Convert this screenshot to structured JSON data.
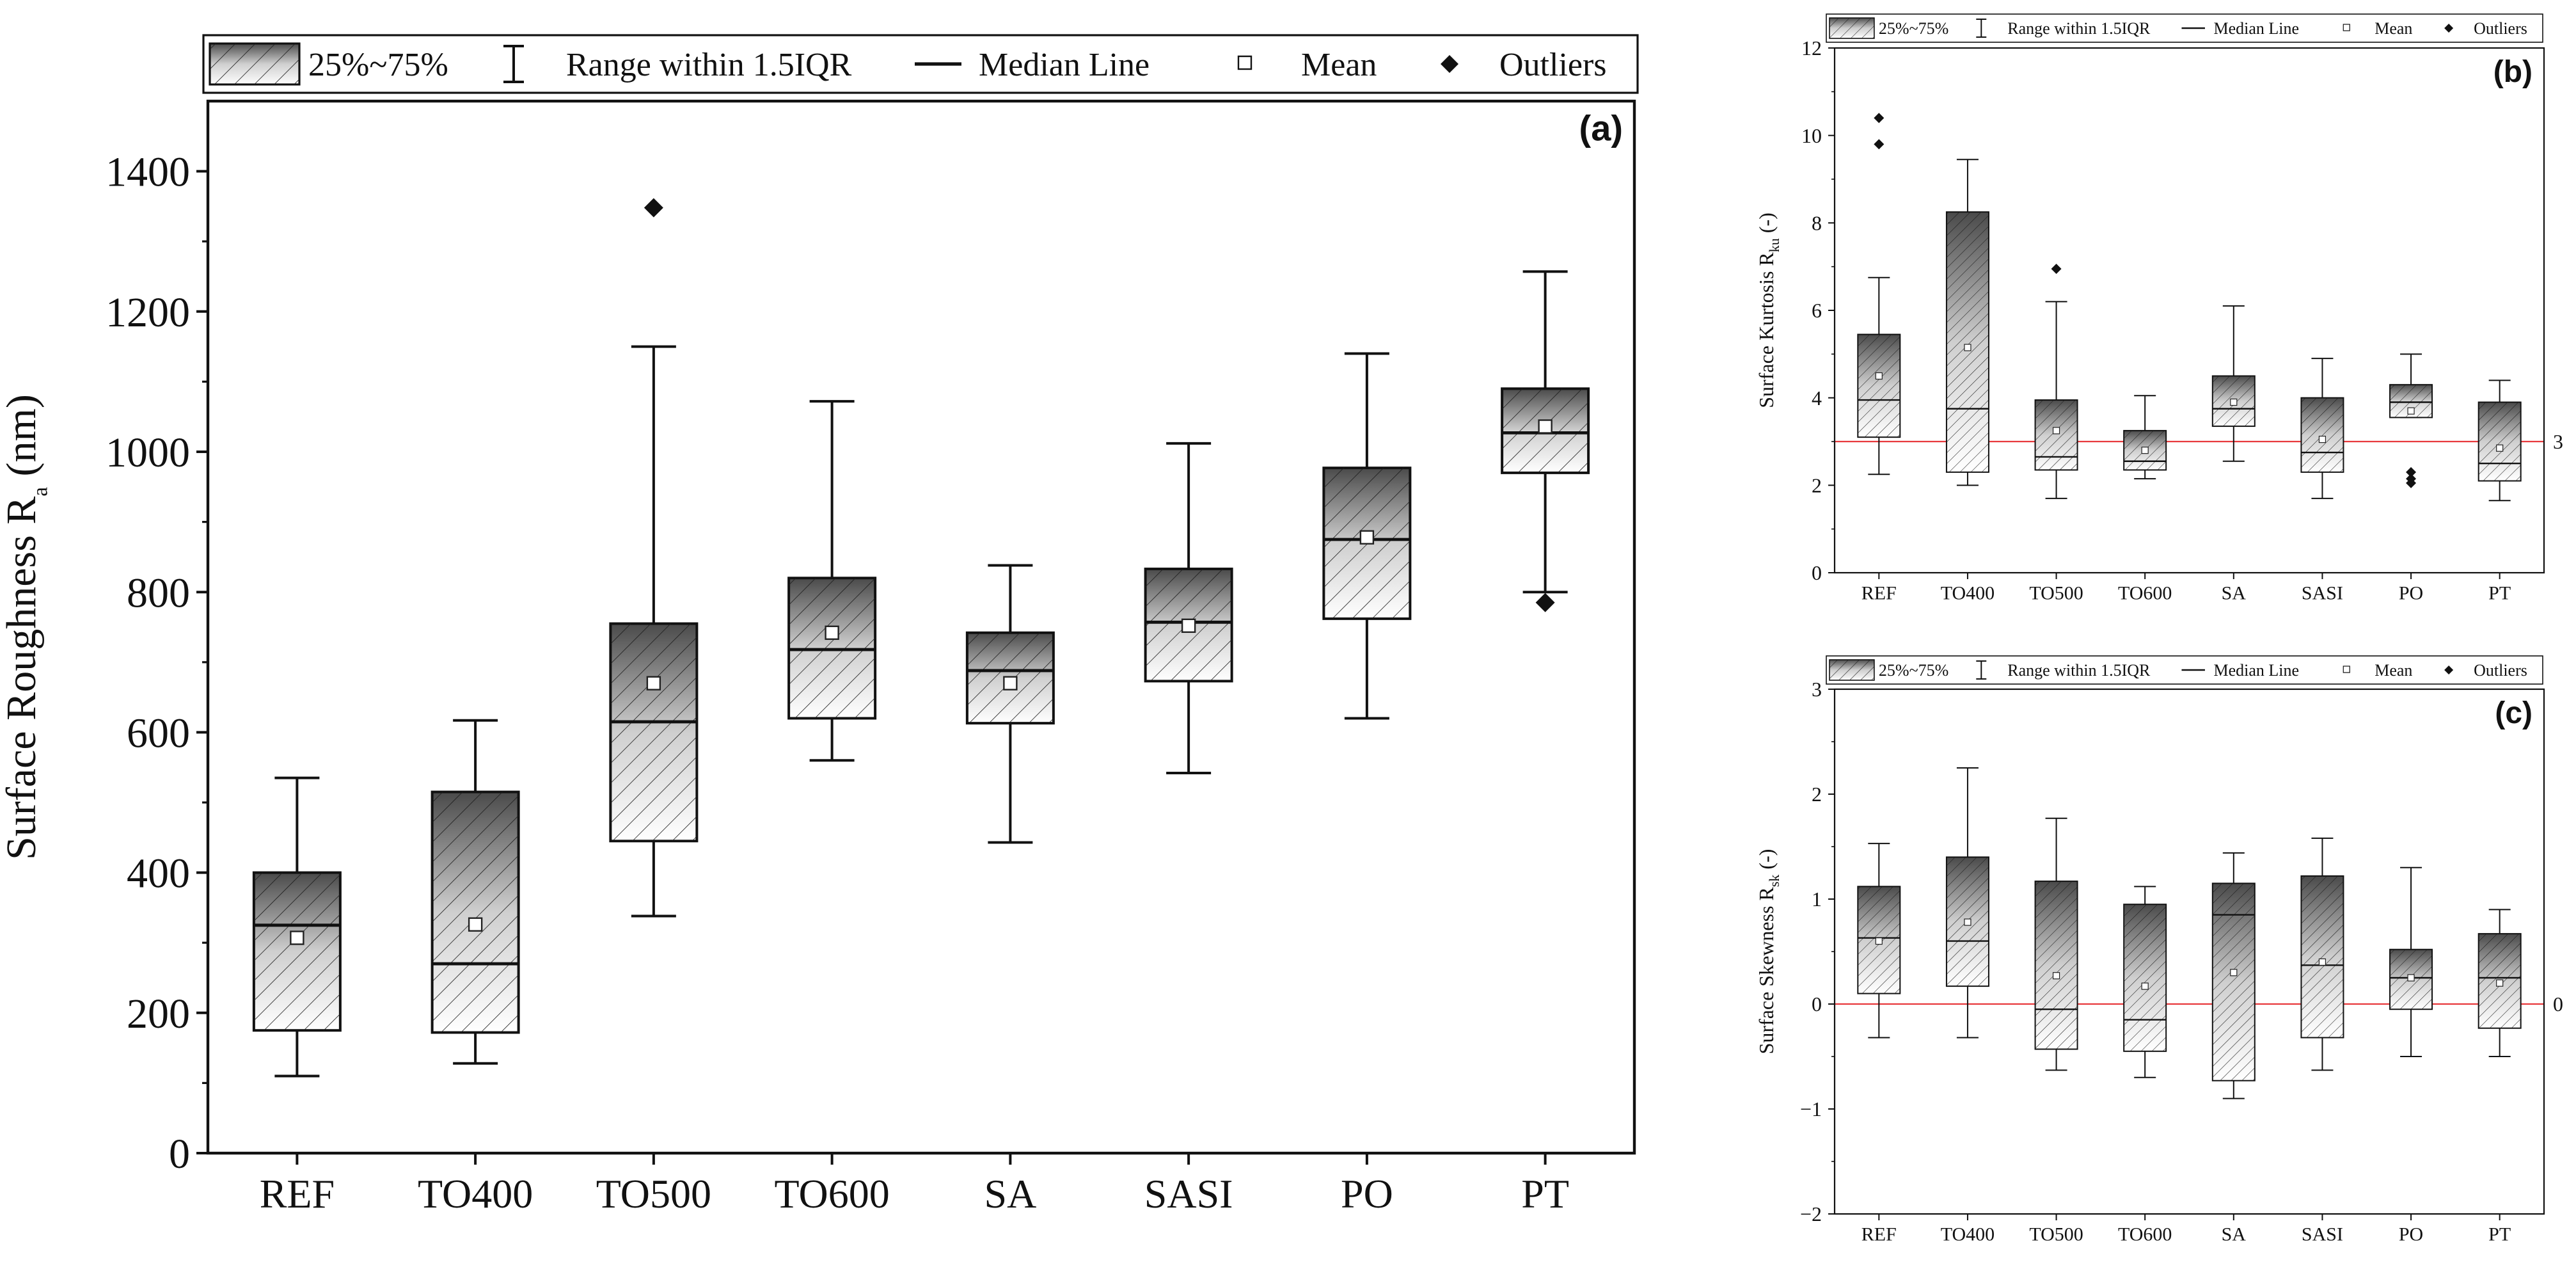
{
  "legend": {
    "box_label": "25%~75%",
    "range_label": "Range within 1.5IQR",
    "median_label": "Median Line",
    "mean_label": "Mean",
    "outlier_label": "Outliers"
  },
  "chart_data": [
    {
      "id": "a",
      "panel_label": "(a)",
      "type": "box",
      "ylabel": "Surface Roughness R",
      "ylabel_sub": "a",
      "ylabel_tail": " (nm)",
      "ylim": [
        0,
        1500
      ],
      "yticks": [
        0,
        200,
        400,
        600,
        800,
        1000,
        1200,
        1400
      ],
      "categories": [
        "REF",
        "TO400",
        "TO500",
        "TO600",
        "SA",
        "SASI",
        "PO",
        "PT"
      ],
      "boxes": [
        {
          "whisker_low": 110,
          "q1": 175,
          "median": 325,
          "q3": 400,
          "whisker_high": 535,
          "mean": 307,
          "outliers": []
        },
        {
          "whisker_low": 128,
          "q1": 172,
          "median": 270,
          "q3": 515,
          "whisker_high": 617,
          "mean": 326,
          "outliers": []
        },
        {
          "whisker_low": 338,
          "q1": 445,
          "median": 615,
          "q3": 755,
          "whisker_high": 1150,
          "mean": 670,
          "outliers": [
            1348
          ]
        },
        {
          "whisker_low": 560,
          "q1": 620,
          "median": 718,
          "q3": 820,
          "whisker_high": 1072,
          "mean": 742,
          "outliers": []
        },
        {
          "whisker_low": 443,
          "q1": 613,
          "median": 688,
          "q3": 742,
          "whisker_high": 838,
          "mean": 670,
          "outliers": []
        },
        {
          "whisker_low": 542,
          "q1": 673,
          "median": 757,
          "q3": 833,
          "whisker_high": 1012,
          "mean": 752,
          "outliers": []
        },
        {
          "whisker_low": 620,
          "q1": 762,
          "median": 875,
          "q3": 977,
          "whisker_high": 1140,
          "mean": 878,
          "outliers": []
        },
        {
          "whisker_low": 800,
          "q1": 970,
          "median": 1027,
          "q3": 1090,
          "whisker_high": 1257,
          "mean": 1036,
          "outliers": [
            785
          ]
        }
      ],
      "reference_line": null
    },
    {
      "id": "b",
      "panel_label": "(b)",
      "type": "box",
      "ylabel": "Surface Kurtosis R",
      "ylabel_sub": "ku",
      "ylabel_tail": " (-)",
      "ylim": [
        0,
        12
      ],
      "yticks": [
        0,
        2,
        4,
        6,
        8,
        10,
        12
      ],
      "categories": [
        "REF",
        "TO400",
        "TO500",
        "TO600",
        "SA",
        "SASI",
        "PO",
        "PT"
      ],
      "boxes": [
        {
          "whisker_low": 2.25,
          "q1": 3.1,
          "median": 3.95,
          "q3": 5.45,
          "whisker_high": 6.75,
          "mean": 4.5,
          "outliers": [
            9.8,
            10.4
          ]
        },
        {
          "whisker_low": 2.0,
          "q1": 2.3,
          "median": 3.75,
          "q3": 8.25,
          "whisker_high": 9.45,
          "mean": 5.15,
          "outliers": []
        },
        {
          "whisker_low": 1.7,
          "q1": 2.35,
          "median": 2.65,
          "q3": 3.95,
          "whisker_high": 6.2,
          "mean": 3.25,
          "outliers": [
            6.95
          ]
        },
        {
          "whisker_low": 2.15,
          "q1": 2.35,
          "median": 2.55,
          "q3": 3.25,
          "whisker_high": 4.05,
          "mean": 2.8,
          "outliers": []
        },
        {
          "whisker_low": 2.55,
          "q1": 3.35,
          "median": 3.75,
          "q3": 4.5,
          "whisker_high": 6.1,
          "mean": 3.9,
          "outliers": []
        },
        {
          "whisker_low": 1.7,
          "q1": 2.3,
          "median": 2.75,
          "q3": 4.0,
          "whisker_high": 4.9,
          "mean": 3.05,
          "outliers": []
        },
        {
          "whisker_low": 3.55,
          "q1": 3.55,
          "median": 3.9,
          "q3": 4.3,
          "whisker_high": 5.0,
          "mean": 3.7,
          "outliers": [
            2.05,
            2.15,
            2.3
          ]
        },
        {
          "whisker_low": 1.65,
          "q1": 2.1,
          "median": 2.5,
          "q3": 3.9,
          "whisker_high": 4.4,
          "mean": 2.85,
          "outliers": []
        }
      ],
      "reference_line": {
        "value": 3,
        "label": "3",
        "color": "#e8393c"
      }
    },
    {
      "id": "c",
      "panel_label": "(c)",
      "type": "box",
      "ylabel": "Surface Skewness R",
      "ylabel_sub": "sk",
      "ylabel_tail": " (-)",
      "ylim": [
        -2,
        3
      ],
      "yticks": [
        -2,
        -1,
        0,
        1,
        2,
        3
      ],
      "categories": [
        "REF",
        "TO400",
        "TO500",
        "TO600",
        "SA",
        "SASI",
        "PO",
        "PT"
      ],
      "boxes": [
        {
          "whisker_low": -0.32,
          "q1": 0.1,
          "median": 0.63,
          "q3": 1.12,
          "whisker_high": 1.53,
          "mean": 0.6,
          "outliers": []
        },
        {
          "whisker_low": -0.32,
          "q1": 0.17,
          "median": 0.6,
          "q3": 1.4,
          "whisker_high": 2.25,
          "mean": 0.78,
          "outliers": []
        },
        {
          "whisker_low": -0.63,
          "q1": -0.43,
          "median": -0.05,
          "q3": 1.17,
          "whisker_high": 1.77,
          "mean": 0.27,
          "outliers": []
        },
        {
          "whisker_low": -0.7,
          "q1": -0.45,
          "median": -0.15,
          "q3": 0.95,
          "whisker_high": 1.12,
          "mean": 0.17,
          "outliers": []
        },
        {
          "whisker_low": -0.9,
          "q1": -0.73,
          "median": 0.85,
          "q3": 1.15,
          "whisker_high": 1.44,
          "mean": 0.3,
          "outliers": []
        },
        {
          "whisker_low": -0.63,
          "q1": -0.32,
          "median": 0.37,
          "q3": 1.22,
          "whisker_high": 1.58,
          "mean": 0.4,
          "outliers": []
        },
        {
          "whisker_low": -0.5,
          "q1": -0.05,
          "median": 0.25,
          "q3": 0.52,
          "whisker_high": 1.3,
          "mean": 0.25,
          "outliers": []
        },
        {
          "whisker_low": -0.5,
          "q1": -0.23,
          "median": 0.25,
          "q3": 0.67,
          "whisker_high": 0.9,
          "mean": 0.2,
          "outliers": []
        }
      ],
      "reference_line": {
        "value": 0,
        "label": "0",
        "color": "#e8393c"
      }
    }
  ]
}
